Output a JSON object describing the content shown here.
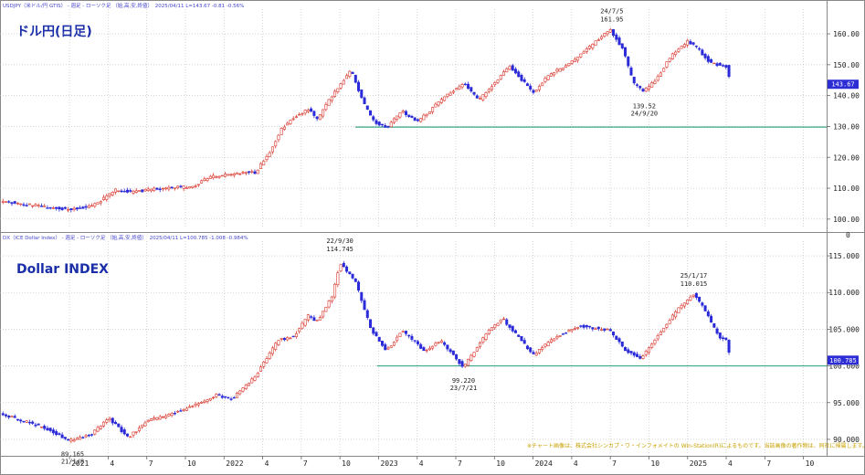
{
  "chart_data": [
    {
      "type": "candlestick",
      "header": "USDJPY（米ドル/円 GTIS） - 週足 - ローソク足 （始,高,安,終値）　2025/04/11 L=143.67 -0.81 -0.56%",
      "title": "ドル円(日足)",
      "ylim": [
        97,
        168
      ],
      "yticks": [
        "100.00",
        "110.00",
        "120.00",
        "130.00",
        "140.00",
        "150.00",
        "160.00"
      ],
      "ytick_values": [
        100,
        110,
        120,
        130,
        140,
        150,
        160
      ],
      "last_label": "143.67",
      "last_value": 143.67,
      "support_line": {
        "value": 129.8,
        "from": 2022.85,
        "to": 2025.9
      },
      "keypoints": [
        [
          2020.55,
          105.8
        ],
        [
          2020.75,
          104.5
        ],
        [
          2021.0,
          103.2
        ],
        [
          2021.15,
          104.2
        ],
        [
          2021.3,
          109.5
        ],
        [
          2021.4,
          108.7
        ],
        [
          2021.6,
          110.0
        ],
        [
          2021.8,
          110.5
        ],
        [
          2021.9,
          113.5
        ],
        [
          2022.1,
          115.0
        ],
        [
          2022.2,
          115.0
        ],
        [
          2022.3,
          122.0
        ],
        [
          2022.37,
          129.0
        ],
        [
          2022.45,
          133.0
        ],
        [
          2022.55,
          135.5
        ],
        [
          2022.6,
          132.0
        ],
        [
          2022.68,
          138.5
        ],
        [
          2022.78,
          145.5
        ],
        [
          2022.82,
          148.5
        ],
        [
          2022.9,
          138.0
        ],
        [
          2022.96,
          132.0
        ],
        [
          2023.05,
          129.5
        ],
        [
          2023.15,
          135.0
        ],
        [
          2023.25,
          131.5
        ],
        [
          2023.45,
          140.5
        ],
        [
          2023.55,
          144.0
        ],
        [
          2023.65,
          138.5
        ],
        [
          2023.85,
          149.5
        ],
        [
          2024.0,
          141.0
        ],
        [
          2024.1,
          146.5
        ],
        [
          2024.25,
          151.0
        ],
        [
          2024.35,
          155.0
        ],
        [
          2024.5,
          161.5
        ],
        [
          2024.58,
          155.0
        ],
        [
          2024.65,
          144.0
        ],
        [
          2024.72,
          141.5
        ],
        [
          2024.8,
          145.5
        ],
        [
          2024.9,
          153.5
        ],
        [
          2025.0,
          157.5
        ],
        [
          2025.05,
          156.0
        ],
        [
          2025.15,
          150.5
        ],
        [
          2025.25,
          149.5
        ],
        [
          2025.28,
          143.7
        ]
      ],
      "annotations": [
        {
          "date": "24/7/5",
          "value": "161.95",
          "at": [
            2024.51,
            161.95
          ],
          "side": "above"
        },
        {
          "date": "24/9/20",
          "value": "139.52",
          "at": [
            2024.72,
            139.52
          ],
          "side": "below"
        }
      ]
    },
    {
      "type": "candlestick",
      "header": "DX（ICE Dollar Index） - 週足 - ローソク足 （始,高,安,終値）　2025/04/11 L=100.785 -1.008 -0.984%",
      "title": "Dollar INDEX",
      "ylim": [
        88,
        117
      ],
      "yticks": [
        "90.000",
        "95.000",
        "100.000",
        "105.000",
        "110.000",
        "115.000"
      ],
      "ytick_values": [
        90,
        95,
        100,
        105,
        110,
        115
      ],
      "last_label": "100.785",
      "last_value": 100.785,
      "support_line": {
        "value": 100.0,
        "from": 2022.99,
        "to": 2025.9
      },
      "keypoints": [
        [
          2020.55,
          93.5
        ],
        [
          2020.7,
          92.5
        ],
        [
          2020.85,
          91.5
        ],
        [
          2021.0,
          89.8
        ],
        [
          2021.15,
          90.8
        ],
        [
          2021.25,
          93.0
        ],
        [
          2021.38,
          90.2
        ],
        [
          2021.5,
          92.5
        ],
        [
          2021.6,
          93.0
        ],
        [
          2021.8,
          94.5
        ],
        [
          2021.95,
          96.0
        ],
        [
          2022.05,
          95.5
        ],
        [
          2022.2,
          98.5
        ],
        [
          2022.35,
          103.5
        ],
        [
          2022.45,
          104.0
        ],
        [
          2022.55,
          107.0
        ],
        [
          2022.6,
          106.0
        ],
        [
          2022.7,
          109.5
        ],
        [
          2022.75,
          114.0
        ],
        [
          2022.85,
          111.5
        ],
        [
          2022.95,
          105.0
        ],
        [
          2023.05,
          102.0
        ],
        [
          2023.15,
          104.8
        ],
        [
          2023.3,
          102.0
        ],
        [
          2023.4,
          103.5
        ],
        [
          2023.55,
          99.8
        ],
        [
          2023.7,
          104.5
        ],
        [
          2023.8,
          106.5
        ],
        [
          2023.9,
          104.0
        ],
        [
          2024.0,
          101.5
        ],
        [
          2024.15,
          104.0
        ],
        [
          2024.3,
          105.5
        ],
        [
          2024.5,
          104.8
        ],
        [
          2024.6,
          102.0
        ],
        [
          2024.7,
          101.0
        ],
        [
          2024.8,
          104.0
        ],
        [
          2024.95,
          108.0
        ],
        [
          2025.04,
          109.8
        ],
        [
          2025.1,
          108.0
        ],
        [
          2025.2,
          104.0
        ],
        [
          2025.25,
          103.5
        ],
        [
          2025.28,
          100.8
        ]
      ],
      "annotations": [
        {
          "date": "22/9/30",
          "value": "114.745",
          "at": [
            2022.75,
            114.745
          ],
          "side": "above"
        },
        {
          "date": "23/7/21",
          "value": "99.220",
          "at": [
            2023.55,
            99.22
          ],
          "side": "below"
        },
        {
          "date": "25/1/17",
          "value": "110.015",
          "at": [
            2025.04,
            110.015
          ],
          "side": "above"
        },
        {
          "date": "21/1/8",
          "value": "89.165",
          "at": [
            2021.02,
            89.165
          ],
          "side": "below"
        }
      ]
    }
  ],
  "x_axis": {
    "range": [
      2020.55,
      2025.9
    ],
    "ticks": [
      {
        "label": "2021",
        "value": 2021.0
      },
      {
        "label": "4",
        "value": 2021.25
      },
      {
        "label": "7",
        "value": 2021.5
      },
      {
        "label": "10",
        "value": 2021.75
      },
      {
        "label": "2022",
        "value": 2022.0
      },
      {
        "label": "4",
        "value": 2022.25
      },
      {
        "label": "7",
        "value": 2022.5
      },
      {
        "label": "10",
        "value": 2022.75
      },
      {
        "label": "2023",
        "value": 2023.0
      },
      {
        "label": "4",
        "value": 2023.25
      },
      {
        "label": "7",
        "value": 2023.5
      },
      {
        "label": "10",
        "value": 2023.75
      },
      {
        "label": "2024",
        "value": 2024.0
      },
      {
        "label": "4",
        "value": 2024.25
      },
      {
        "label": "7",
        "value": 2024.5
      },
      {
        "label": "10",
        "value": 2024.75
      },
      {
        "label": "2025",
        "value": 2025.0
      },
      {
        "label": "4",
        "value": 2025.25
      },
      {
        "label": "7",
        "value": 2025.5
      },
      {
        "label": "10",
        "value": 2025.75
      }
    ]
  },
  "credit": "※チャート画像は、株式会社シンカプ・ワ・インフォメイトの Win-Station(R)によるものです。当該画像の著作物は、同社に帰属します。",
  "colors": {
    "up": "#d9372d",
    "down": "#2a2ad8",
    "support": "#3aa889",
    "tag_bg": "#2d2dd6",
    "title": "#1a2ea8"
  }
}
